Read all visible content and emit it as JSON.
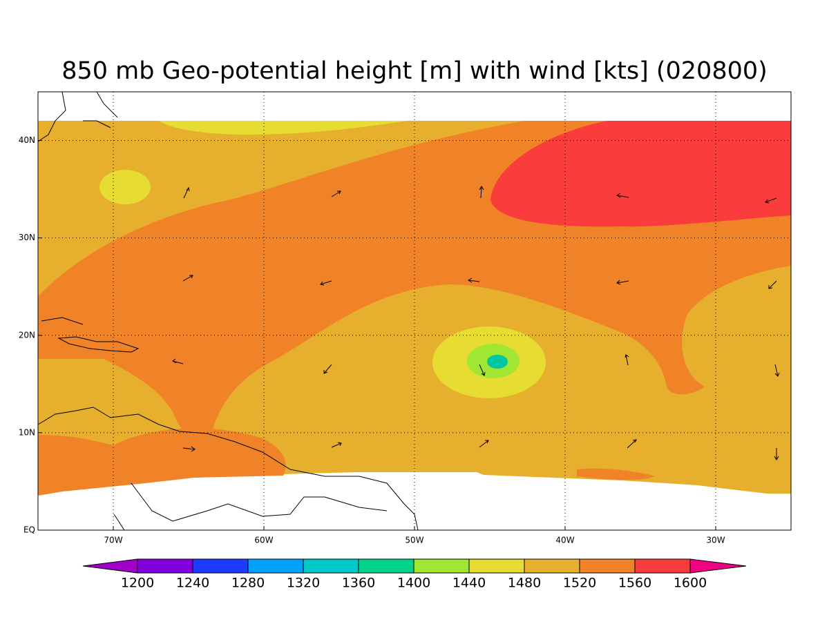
{
  "title": "850 mb Geo-potential height [m] with wind [kts] (020800)",
  "lon_range": [
    -75,
    -25
  ],
  "lat_range": [
    0,
    45
  ],
  "lon_ticks": [
    {
      "value": -70,
      "label": "70W"
    },
    {
      "value": -60,
      "label": "60W"
    },
    {
      "value": -50,
      "label": "50W"
    },
    {
      "value": -40,
      "label": "40W"
    },
    {
      "value": -30,
      "label": "30W"
    }
  ],
  "lat_ticks": [
    {
      "value": 0,
      "label": "EQ"
    },
    {
      "value": 10,
      "label": "10N"
    },
    {
      "value": 20,
      "label": "20N"
    },
    {
      "value": 30,
      "label": "30N"
    },
    {
      "value": 40,
      "label": "40N"
    }
  ],
  "colorbar": {
    "levels": [
      1200,
      1240,
      1280,
      1320,
      1360,
      1400,
      1440,
      1480,
      1520,
      1560,
      1600
    ],
    "colors": [
      "#a000c8",
      "#8200dc",
      "#1e3cff",
      "#00a0ff",
      "#00c8c8",
      "#00d28c",
      "#a0e632",
      "#e6dc32",
      "#e6af2d",
      "#f08228",
      "#fa3c3c",
      "#f00082"
    ]
  }
}
